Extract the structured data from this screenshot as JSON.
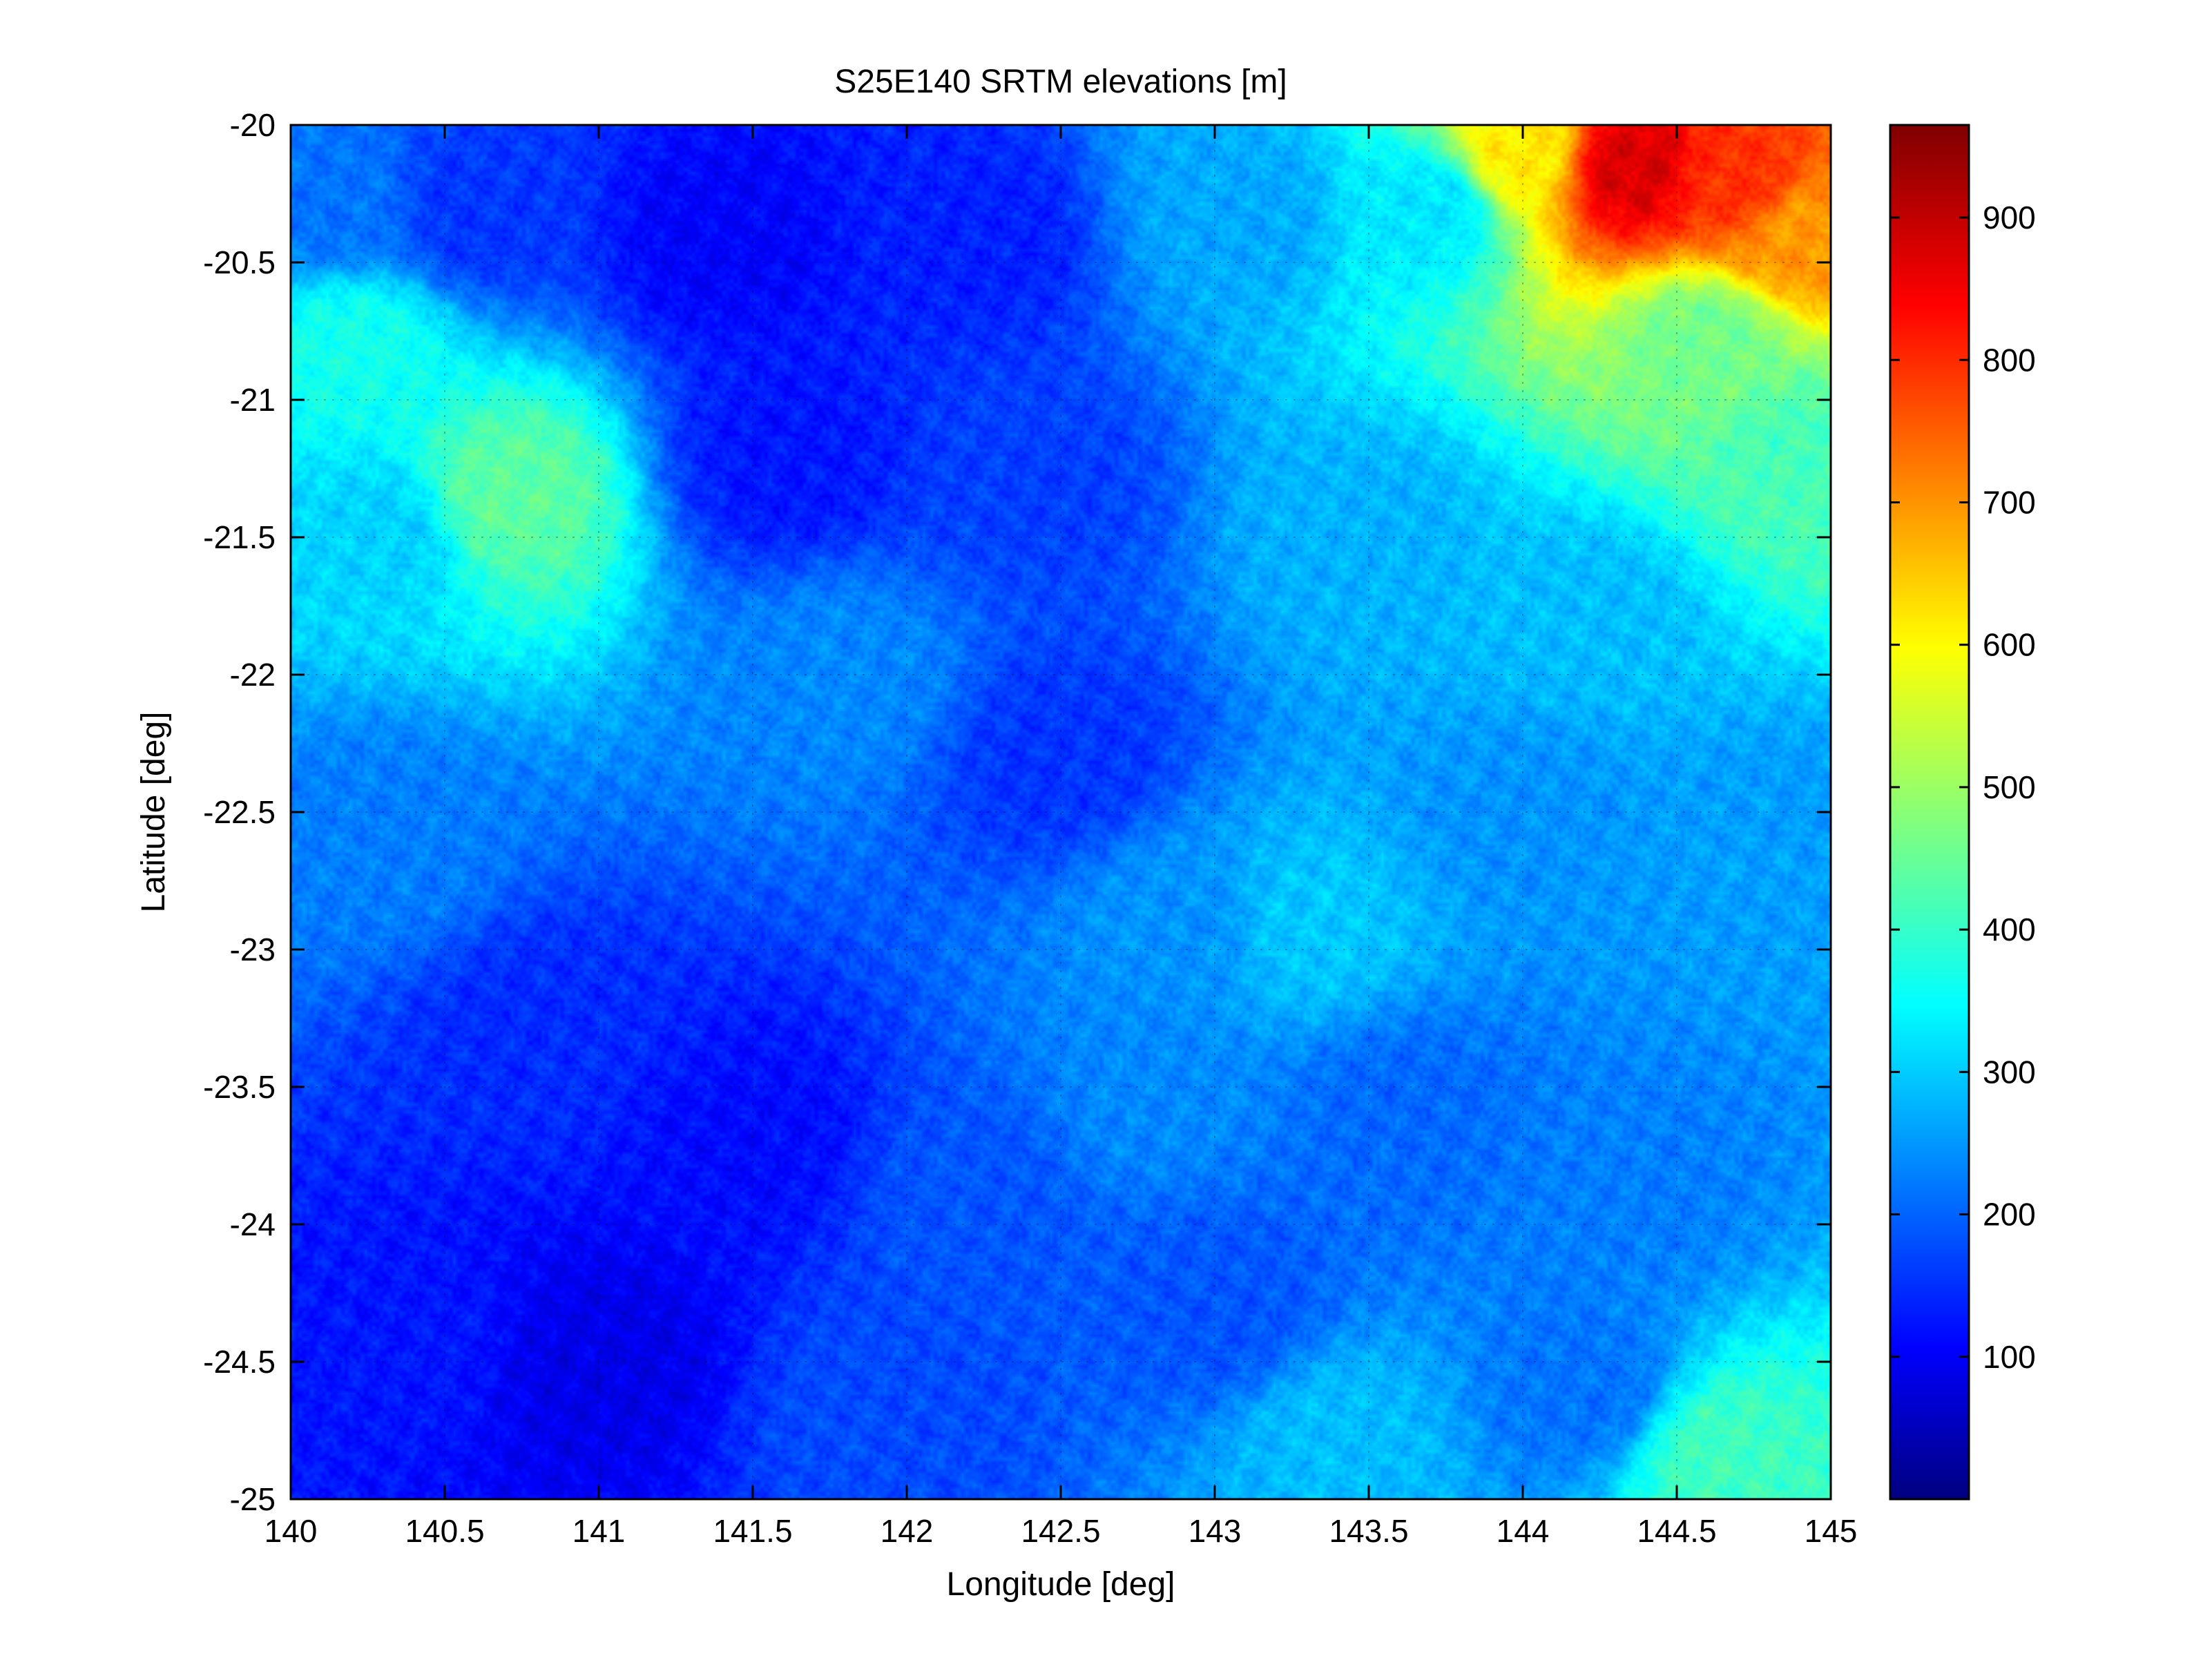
{
  "figure": {
    "title": "S25E140 SRTM elevations [m]",
    "xlabel": "Longitude [deg]",
    "ylabel": "Latitude [deg]"
  },
  "chart_data": {
    "type": "heatmap",
    "title": "S25E140 SRTM elevations [m]",
    "xlabel": "Longitude [deg]",
    "ylabel": "Latitude [deg]",
    "xlim": [
      140,
      145
    ],
    "ylim": [
      -25,
      -20
    ],
    "x_ticks": [
      "140",
      "140.5",
      "141",
      "141.5",
      "142",
      "142.5",
      "143",
      "143.5",
      "144",
      "144.5",
      "145"
    ],
    "y_ticks": [
      "-20",
      "-20.5",
      "-21",
      "-21.5",
      "-22",
      "-22.5",
      "-23",
      "-23.5",
      "-24",
      "-24.5",
      "-25"
    ],
    "grid": true,
    "colormap": "jet",
    "colorbar": {
      "range": [
        0,
        965
      ],
      "ticks": [
        "100",
        "200",
        "300",
        "400",
        "500",
        "600",
        "700",
        "800",
        "900"
      ],
      "location": "right"
    },
    "elevation_samples": [
      {
        "lon": 140.15,
        "lat": -20.3,
        "elev": 230
      },
      {
        "lon": 140.6,
        "lat": -20.3,
        "elev": 170
      },
      {
        "lon": 141.4,
        "lat": -20.4,
        "elev": 120
      },
      {
        "lon": 142.2,
        "lat": -20.4,
        "elev": 150
      },
      {
        "lon": 143.1,
        "lat": -20.3,
        "elev": 280
      },
      {
        "lon": 143.7,
        "lat": -20.3,
        "elev": 340
      },
      {
        "lon": 144.0,
        "lat": -20.1,
        "elev": 620
      },
      {
        "lon": 144.35,
        "lat": -20.15,
        "elev": 880
      },
      {
        "lon": 144.7,
        "lat": -20.2,
        "elev": 800
      },
      {
        "lon": 144.9,
        "lat": -20.4,
        "elev": 700
      },
      {
        "lon": 144.6,
        "lat": -20.8,
        "elev": 470
      },
      {
        "lon": 144.9,
        "lat": -21.2,
        "elev": 430
      },
      {
        "lon": 140.7,
        "lat": -21.35,
        "elev": 450
      },
      {
        "lon": 140.3,
        "lat": -21.5,
        "elev": 320
      },
      {
        "lon": 140.2,
        "lat": -20.8,
        "elev": 380
      },
      {
        "lon": 141.6,
        "lat": -21.2,
        "elev": 140
      },
      {
        "lon": 142.4,
        "lat": -21.3,
        "elev": 180
      },
      {
        "lon": 143.5,
        "lat": -21.5,
        "elev": 290
      },
      {
        "lon": 144.2,
        "lat": -21.8,
        "elev": 300
      },
      {
        "lon": 141.8,
        "lat": -22.0,
        "elev": 250
      },
      {
        "lon": 142.5,
        "lat": -22.3,
        "elev": 170
      },
      {
        "lon": 143.3,
        "lat": -22.9,
        "elev": 310
      },
      {
        "lon": 142.9,
        "lat": -22.9,
        "elev": 260
      },
      {
        "lon": 144.0,
        "lat": -22.5,
        "elev": 260
      },
      {
        "lon": 144.8,
        "lat": -22.6,
        "elev": 270
      },
      {
        "lon": 140.3,
        "lat": -22.6,
        "elev": 240
      },
      {
        "lon": 140.8,
        "lat": -23.3,
        "elev": 160
      },
      {
        "lon": 141.5,
        "lat": -23.7,
        "elev": 130
      },
      {
        "lon": 142.2,
        "lat": -23.9,
        "elev": 200
      },
      {
        "lon": 142.8,
        "lat": -23.5,
        "elev": 250
      },
      {
        "lon": 143.6,
        "lat": -23.6,
        "elev": 220
      },
      {
        "lon": 144.3,
        "lat": -23.9,
        "elev": 240
      },
      {
        "lon": 140.4,
        "lat": -24.4,
        "elev": 140
      },
      {
        "lon": 141.0,
        "lat": -24.5,
        "elev": 100
      },
      {
        "lon": 141.9,
        "lat": -24.7,
        "elev": 190
      },
      {
        "lon": 143.4,
        "lat": -24.8,
        "elev": 300
      },
      {
        "lon": 144.2,
        "lat": -24.6,
        "elev": 230
      },
      {
        "lon": 144.65,
        "lat": -24.85,
        "elev": 420
      },
      {
        "lon": 143.0,
        "lat": -24.3,
        "elev": 200
      }
    ]
  }
}
